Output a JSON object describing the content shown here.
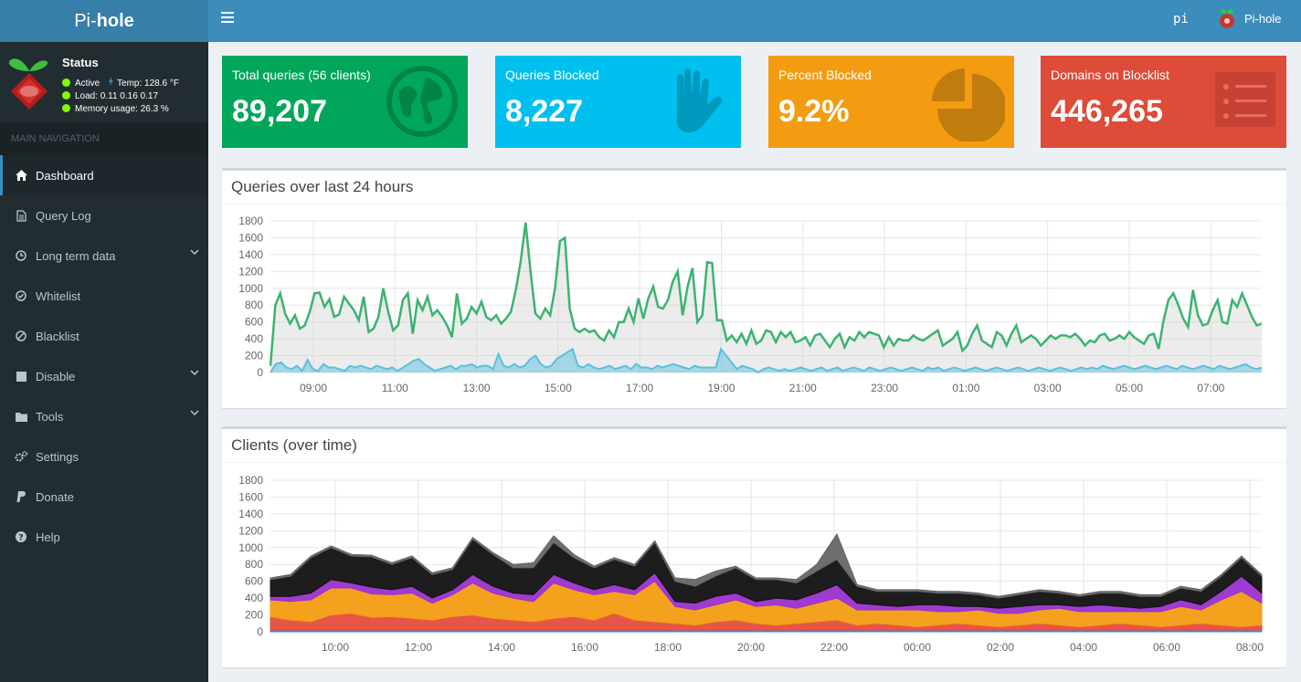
{
  "brand": {
    "light": "Pi-",
    "bold": "hole"
  },
  "header": {
    "hostname": "pi",
    "user": "Pi-hole"
  },
  "status": {
    "title": "Status",
    "active": "Active",
    "temp": "Temp: 128.6 °F",
    "load": "Load:  0.11  0.16  0.17",
    "memory": "Memory usage:  26.3 %"
  },
  "nav": {
    "header": "MAIN NAVIGATION",
    "items": [
      {
        "label": "Dashboard",
        "icon": "home-icon"
      },
      {
        "label": "Query Log",
        "icon": "file-icon"
      },
      {
        "label": "Long term data",
        "icon": "clock-icon"
      },
      {
        "label": "Whitelist",
        "icon": "check-circle-icon"
      },
      {
        "label": "Blacklist",
        "icon": "ban-icon"
      },
      {
        "label": "Disable",
        "icon": "stop-icon"
      },
      {
        "label": "Tools",
        "icon": "folder-icon"
      },
      {
        "label": "Settings",
        "icon": "gears-icon"
      },
      {
        "label": "Donate",
        "icon": "paypal-icon"
      },
      {
        "label": "Help",
        "icon": "question-circle-icon"
      }
    ]
  },
  "stats": [
    {
      "label": "Total queries (56 clients)",
      "value": "89,207",
      "color": "#00a65a",
      "icon": "globe-icon"
    },
    {
      "label": "Queries Blocked",
      "value": "8,227",
      "color": "#00c0ef",
      "icon": "hand-icon"
    },
    {
      "label": "Percent Blocked",
      "value": "9.2%",
      "color": "#f39c12",
      "icon": "pie-chart-icon"
    },
    {
      "label": "Domains on Blocklist",
      "value": "446,265",
      "color": "#dd4b39",
      "icon": "list-icon"
    }
  ],
  "queries_panel": {
    "title": "Queries over last 24 hours"
  },
  "clients_panel": {
    "title": "Clients (over time)"
  },
  "chart_data": [
    {
      "type": "area",
      "title": "Queries over last 24 hours",
      "ylim": [
        0,
        1800
      ],
      "yticks": [
        "1800",
        "1600",
        "1400",
        "1200",
        "1000",
        "800",
        "600",
        "400",
        "200",
        "0"
      ],
      "xticks": [
        "09:00",
        "11:00",
        "13:00",
        "15:00",
        "17:00",
        "19:00",
        "21:00",
        "23:00",
        "01:00",
        "03:00",
        "05:00",
        "07:00"
      ],
      "grid": true,
      "series": [
        {
          "color": "#3cb371",
          "values": [
            80,
            800,
            940,
            700,
            580,
            680,
            520,
            560,
            720,
            940,
            950,
            780,
            870,
            660,
            690,
            900,
            820,
            740,
            620,
            900,
            480,
            520,
            660,
            1000,
            720,
            500,
            560,
            860,
            940,
            460,
            860,
            740,
            900,
            680,
            740,
            660,
            560,
            420,
            940,
            580,
            640,
            780,
            700,
            840,
            660,
            620,
            680,
            580,
            640,
            720,
            980,
            1320,
            1780,
            1200,
            700,
            640,
            760,
            680,
            1000,
            1560,
            1600,
            760,
            520,
            480,
            520,
            480,
            500,
            420,
            380,
            500,
            420,
            600,
            600,
            760,
            600,
            880,
            640,
            880,
            1020,
            780,
            760,
            860,
            1080,
            1200,
            680,
            1020,
            1240,
            600,
            680,
            1310,
            1300,
            620,
            620,
            380,
            440,
            360,
            460,
            340,
            500,
            340,
            380,
            500,
            480,
            360,
            480,
            420,
            480,
            360,
            380,
            420,
            320,
            440,
            460,
            380,
            300,
            400,
            460,
            300,
            420,
            380,
            480,
            420,
            480,
            460,
            440,
            300,
            420,
            320,
            400,
            380,
            380,
            440,
            400,
            380,
            420,
            460,
            500,
            320,
            360,
            400,
            480,
            260,
            320,
            460,
            560,
            380,
            340,
            300,
            480,
            440,
            320,
            460,
            560,
            360,
            400,
            440,
            400,
            320,
            380,
            440,
            400,
            440,
            440,
            420,
            460,
            400,
            320,
            380,
            360,
            440,
            460,
            380,
            400,
            440,
            400,
            480,
            420,
            380,
            340,
            440,
            460,
            280,
            620,
            860,
            940,
            800,
            640,
            540,
            980,
            680,
            560,
            580,
            740,
            860,
            600,
            580,
            860,
            780,
            940,
            800,
            660,
            560,
            580
          ]
        },
        {
          "color": "#5bc0de",
          "values": [
            0,
            100,
            120,
            60,
            40,
            80,
            20,
            150,
            40,
            20,
            100,
            60,
            60,
            40,
            20,
            80,
            60,
            80,
            60,
            40,
            80,
            60,
            40,
            60,
            20,
            60,
            100,
            140,
            160,
            100,
            60,
            20,
            40,
            60,
            80,
            40,
            80,
            80,
            100,
            60,
            80,
            80,
            40,
            220,
            80,
            60,
            100,
            60,
            80,
            160,
            200,
            100,
            60,
            80,
            160,
            200,
            240,
            280,
            80,
            60,
            100,
            60,
            40,
            60,
            80,
            40,
            60,
            80,
            40,
            100,
            60,
            60,
            40,
            80,
            60,
            80,
            100,
            80,
            60,
            40,
            80,
            60,
            60,
            60,
            60,
            280,
            200,
            120,
            40,
            80,
            60,
            40,
            0,
            40,
            60,
            40,
            20,
            40,
            20,
            40,
            60,
            40,
            20,
            40,
            60,
            20,
            40,
            60,
            20,
            40,
            60,
            40,
            20,
            60,
            40,
            20,
            40,
            60,
            40,
            20,
            40,
            60,
            40,
            20,
            60,
            40,
            60,
            20,
            40,
            60,
            40,
            20,
            40,
            60,
            40,
            20,
            40,
            60,
            40,
            20,
            40,
            60,
            40,
            20,
            40,
            60,
            40,
            20,
            40,
            60,
            40,
            20,
            40,
            60,
            40,
            60,
            40,
            80,
            60,
            40,
            60,
            80,
            60,
            40,
            60,
            80,
            60,
            40,
            60,
            80,
            60,
            40,
            80,
            60,
            40,
            60,
            80,
            60,
            40,
            80,
            60,
            40,
            60,
            80,
            100,
            60,
            40,
            60
          ]
        }
      ]
    },
    {
      "type": "area",
      "title": "Clients (over time)",
      "ylim": [
        0,
        1800
      ],
      "yticks": [
        "1800",
        "1600",
        "1400",
        "1200",
        "1000",
        "800",
        "600",
        "400",
        "200",
        "0"
      ],
      "xticks": [
        "10:00",
        "12:00",
        "14:00",
        "16:00",
        "18:00",
        "20:00",
        "22:00",
        "00:00",
        "02:00",
        "04:00",
        "06:00",
        "08:00"
      ],
      "grid": true,
      "stacked": true,
      "series": [
        {
          "color": "#1e90ff",
          "values": [
            20,
            20,
            20,
            20,
            20,
            20,
            20,
            20,
            20,
            20,
            20,
            20,
            20,
            20,
            20,
            20,
            20,
            20,
            20,
            20,
            20,
            20,
            20,
            20,
            20,
            20,
            20,
            20,
            20,
            20,
            20,
            20,
            20,
            20,
            20,
            20,
            20,
            20,
            20,
            20,
            20,
            20,
            20,
            20,
            20,
            20,
            20,
            20,
            20,
            20
          ]
        },
        {
          "color": "#e74c3c",
          "values": [
            160,
            120,
            100,
            180,
            200,
            150,
            160,
            140,
            120,
            160,
            180,
            140,
            120,
            100,
            140,
            160,
            120,
            200,
            120,
            100,
            80,
            60,
            100,
            120,
            80,
            60,
            80,
            100,
            120,
            60,
            80,
            60,
            40,
            60,
            80,
            60,
            40,
            60,
            80,
            60,
            40,
            60,
            80,
            60,
            40,
            60,
            80,
            60,
            40,
            60
          ]
        },
        {
          "color": "#f39c12",
          "values": [
            200,
            220,
            260,
            320,
            300,
            280,
            260,
            300,
            200,
            260,
            380,
            300,
            260,
            240,
            420,
            320,
            300,
            260,
            300,
            480,
            200,
            180,
            200,
            240,
            200,
            240,
            180,
            220,
            260,
            180,
            160,
            180,
            200,
            160,
            140,
            180,
            160,
            140,
            160,
            200,
            180,
            160,
            140,
            160,
            180,
            220,
            160,
            300,
            420,
            260
          ]
        },
        {
          "color": "#9b30d0",
          "values": [
            40,
            60,
            80,
            100,
            60,
            80,
            60,
            80,
            60,
            60,
            100,
            80,
            60,
            80,
            100,
            80,
            60,
            80,
            60,
            100,
            60,
            80,
            100,
            80,
            60,
            80,
            100,
            120,
            160,
            80,
            60,
            40,
            60,
            80,
            60,
            40,
            60,
            80,
            60,
            40,
            60,
            80,
            60,
            40,
            60,
            80,
            60,
            100,
            180,
            120
          ]
        },
        {
          "color": "#111111",
          "values": [
            200,
            240,
            420,
            380,
            320,
            360,
            300,
            340,
            280,
            240,
            420,
            380,
            300,
            320,
            380,
            300,
            260,
            300,
            280,
            360,
            240,
            200,
            240,
            300,
            260,
            220,
            200,
            260,
            300,
            200,
            160,
            180,
            160,
            140,
            160,
            140,
            120,
            140,
            160,
            140,
            120,
            140,
            160,
            140,
            120,
            140,
            160,
            180,
            220,
            200
          ]
        },
        {
          "color": "#666666",
          "values": [
            20,
            20,
            20,
            20,
            20,
            20,
            20,
            20,
            20,
            20,
            20,
            20,
            40,
            60,
            80,
            40,
            20,
            20,
            20,
            20,
            40,
            80,
            60,
            20,
            20,
            20,
            40,
            80,
            300,
            20,
            20,
            20,
            20,
            20,
            20,
            20,
            20,
            20,
            20,
            20,
            20,
            20,
            20,
            20,
            20,
            20,
            20,
            20,
            20,
            20
          ]
        }
      ]
    }
  ]
}
